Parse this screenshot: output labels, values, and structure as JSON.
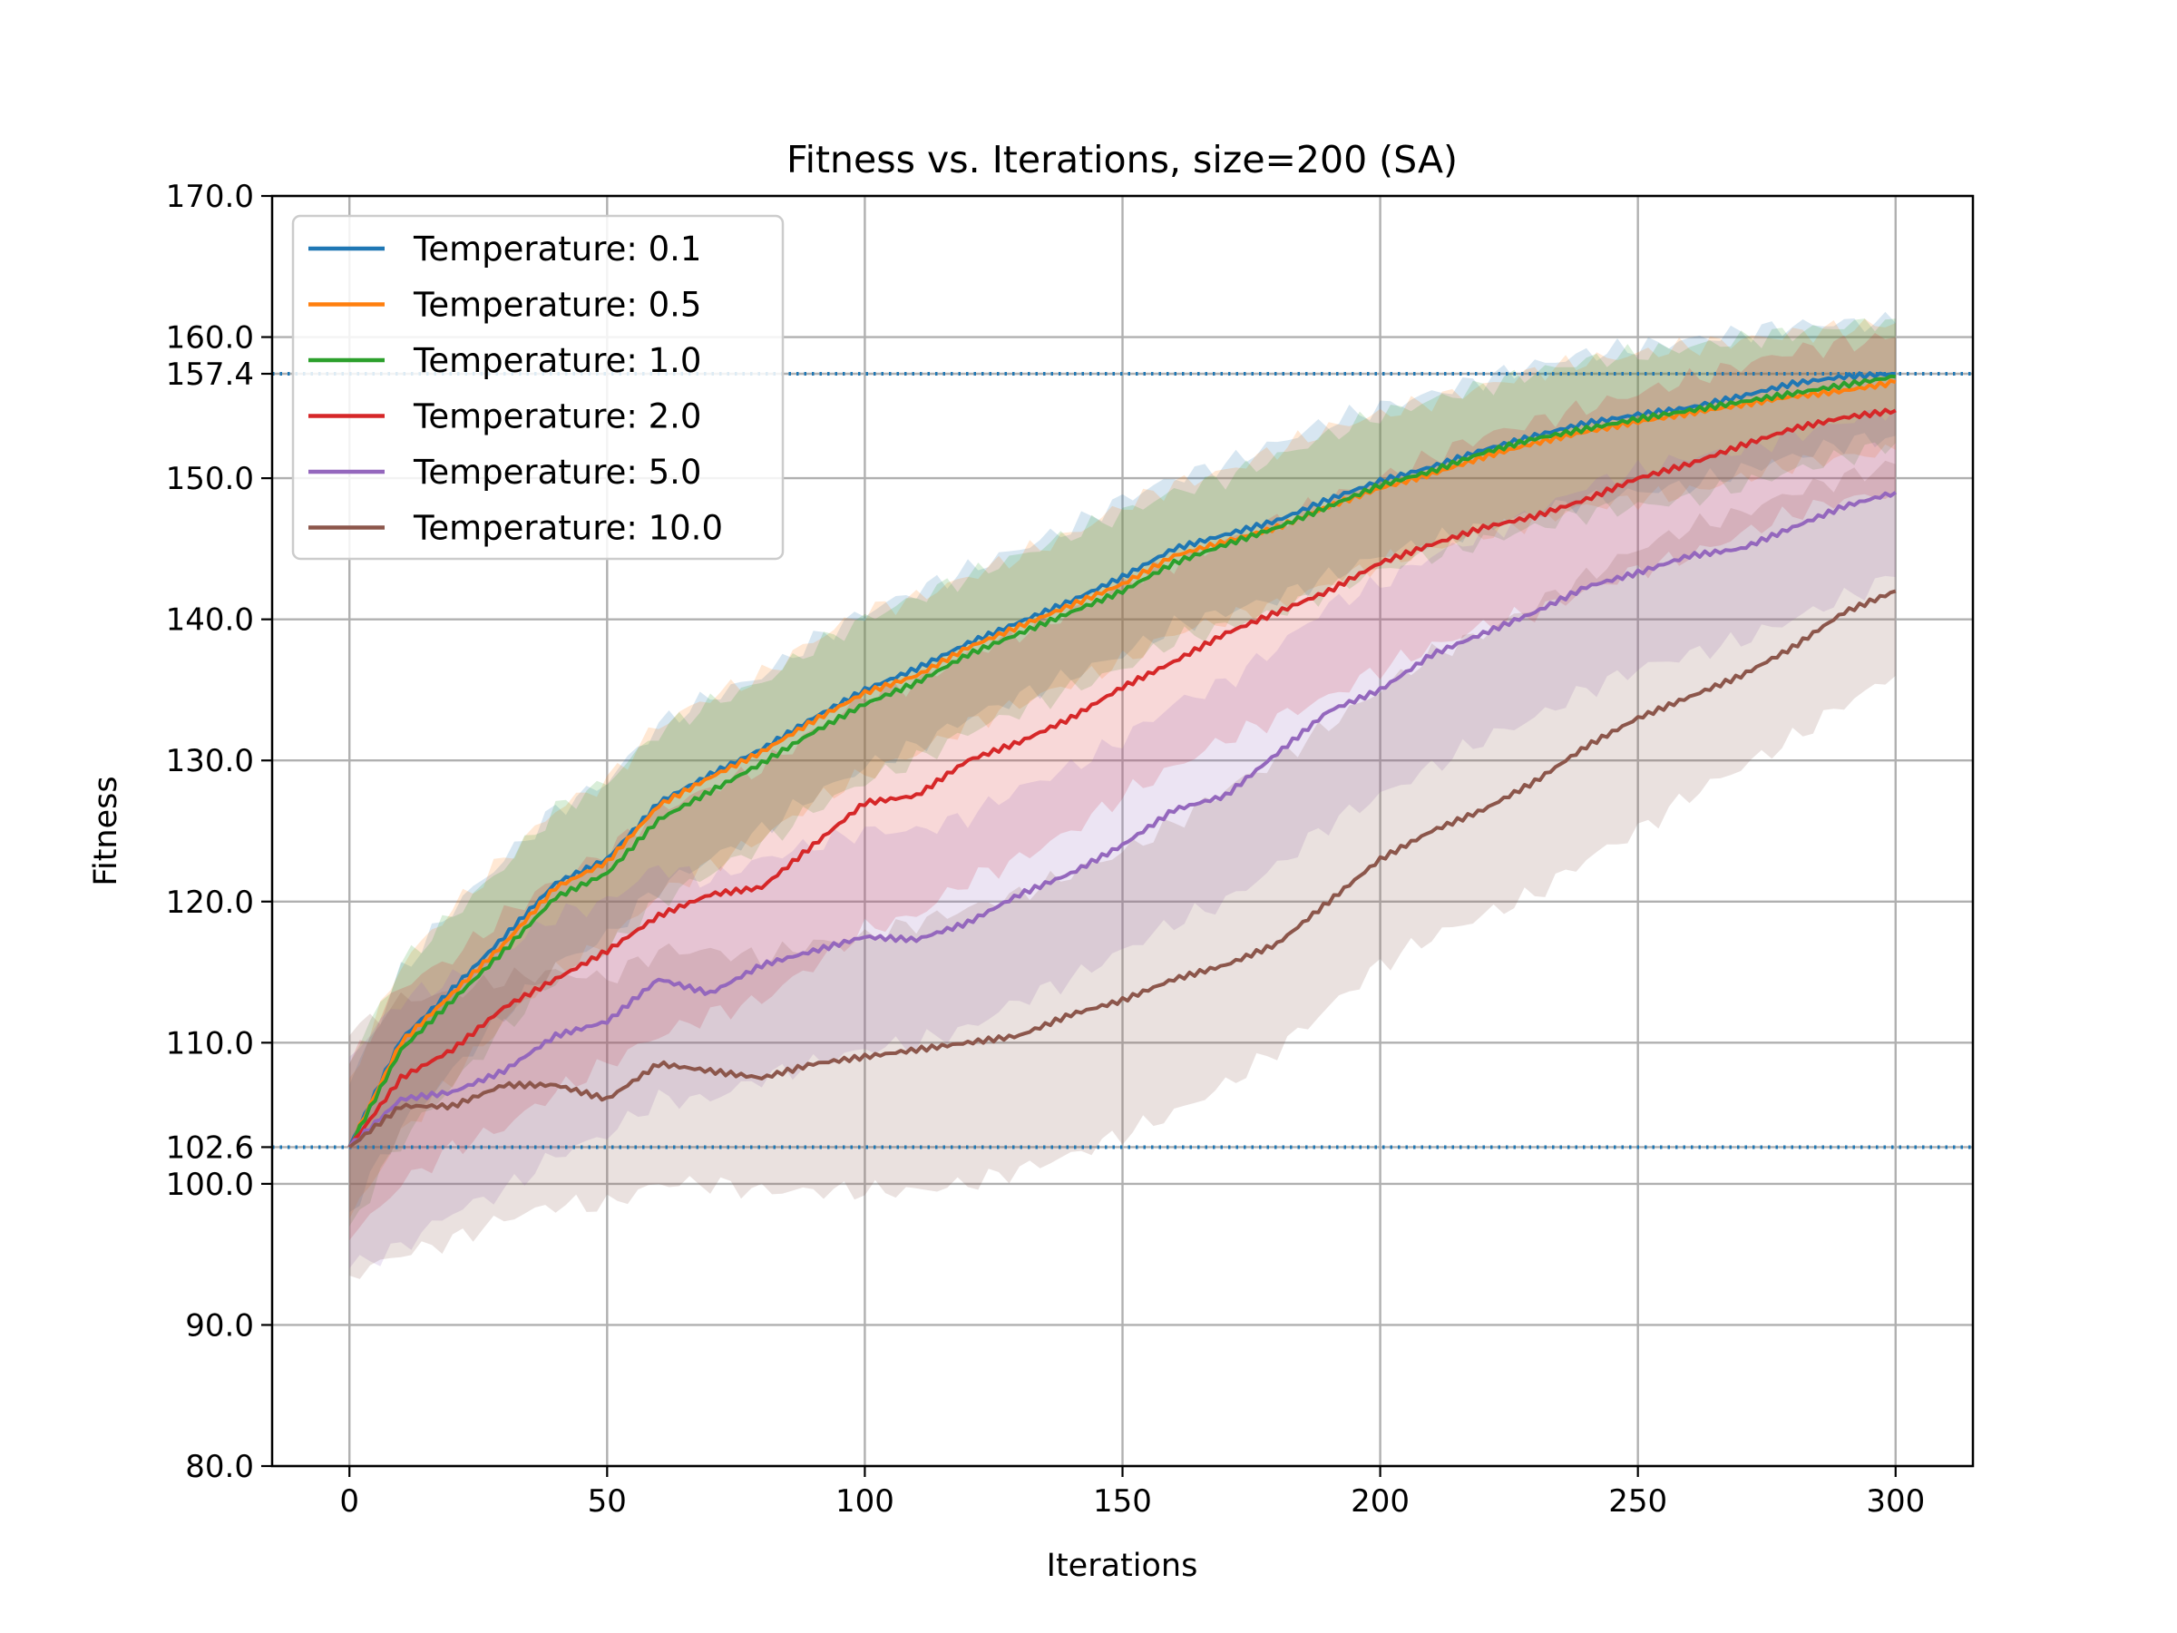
{
  "chart_data": {
    "type": "line",
    "title": "Fitness vs. Iterations, size=200 (SA)",
    "xlabel": "Iterations",
    "ylabel": "Fitness",
    "xlim": [
      -15,
      315
    ],
    "ylim": [
      80,
      170
    ],
    "xticks": [
      "0",
      "50",
      "100",
      "150",
      "200",
      "250",
      "300"
    ],
    "yticks": [
      "80.0",
      "90.0",
      "100.0",
      "102.6",
      "110.0",
      "120.0",
      "130.0",
      "140.0",
      "150.0",
      "157.4",
      "160.0",
      "170.0"
    ],
    "grid": true,
    "legend_position": "top-left",
    "reference_lines": [
      {
        "y": 157.4,
        "label": "157.4",
        "color": "#1f77b4",
        "style": "dotted"
      },
      {
        "y": 102.6,
        "label": "102.6",
        "color": "#1f77b4",
        "style": "dotted"
      }
    ],
    "x": [
      0,
      10,
      20,
      30,
      40,
      50,
      60,
      70,
      80,
      90,
      100,
      110,
      120,
      130,
      140,
      150,
      160,
      170,
      180,
      190,
      200,
      210,
      220,
      230,
      240,
      250,
      260,
      270,
      280,
      290,
      300
    ],
    "series": [
      {
        "name": "Temperature: 0.1",
        "color": "#1f77b4",
        "values": [
          102.6,
          110.2,
          113.8,
          117.5,
          121.3,
          123.0,
          127.0,
          129.0,
          130.8,
          133.0,
          135.0,
          136.5,
          138.3,
          139.8,
          141.3,
          143.0,
          145.0,
          146.0,
          147.0,
          148.5,
          149.8,
          150.8,
          152.0,
          153.0,
          153.9,
          154.5,
          155.0,
          155.8,
          156.7,
          157.2,
          157.4
        ],
        "lower": [
          98.0,
          104.0,
          108.0,
          112.0,
          115.5,
          117.5,
          121.0,
          123.0,
          125.0,
          127.5,
          129.5,
          131.0,
          133.0,
          134.5,
          136.0,
          137.5,
          139.5,
          140.5,
          141.5,
          143.0,
          144.5,
          145.5,
          146.5,
          147.5,
          148.5,
          149.0,
          149.5,
          150.5,
          151.5,
          152.5,
          153.0
        ],
        "upper": [
          107.0,
          115.0,
          119.5,
          123.0,
          126.5,
          128.5,
          132.5,
          134.5,
          136.0,
          138.5,
          140.5,
          142.0,
          143.5,
          145.0,
          146.5,
          148.5,
          150.0,
          151.0,
          152.5,
          154.0,
          155.0,
          156.0,
          157.0,
          158.0,
          158.8,
          159.3,
          159.8,
          160.3,
          160.8,
          161.0,
          161.0
        ]
      },
      {
        "name": "Temperature: 0.5",
        "color": "#ff7f0e",
        "values": [
          102.6,
          110.0,
          113.5,
          117.0,
          121.0,
          122.8,
          126.8,
          128.8,
          130.6,
          132.8,
          134.8,
          136.0,
          138.0,
          139.5,
          141.0,
          142.5,
          144.5,
          145.5,
          146.5,
          148.0,
          149.3,
          150.3,
          151.5,
          152.5,
          153.3,
          154.0,
          154.6,
          155.2,
          155.8,
          156.2,
          156.8
        ],
        "lower": [
          97.5,
          103.5,
          107.5,
          111.5,
          115.0,
          117.0,
          120.5,
          122.5,
          124.5,
          127.0,
          129.0,
          130.5,
          132.5,
          134.0,
          135.5,
          137.0,
          139.0,
          140.0,
          141.0,
          142.5,
          144.0,
          145.0,
          146.0,
          147.0,
          148.0,
          148.5,
          149.0,
          150.0,
          151.0,
          151.5,
          152.0
        ],
        "upper": [
          107.5,
          115.5,
          119.5,
          123.0,
          126.5,
          128.5,
          132.5,
          134.5,
          136.0,
          138.5,
          140.5,
          141.5,
          143.0,
          144.5,
          146.0,
          148.0,
          149.5,
          150.5,
          152.0,
          153.5,
          154.5,
          155.5,
          156.5,
          157.5,
          158.3,
          158.8,
          159.3,
          159.8,
          160.2,
          160.6,
          161.0
        ]
      },
      {
        "name": "Temperature: 1.0",
        "color": "#2ca02c",
        "values": [
          102.6,
          109.5,
          113.0,
          116.5,
          120.3,
          122.0,
          125.8,
          127.8,
          129.8,
          132.0,
          134.0,
          135.5,
          137.5,
          139.0,
          140.5,
          142.0,
          144.0,
          145.3,
          146.5,
          148.0,
          149.5,
          150.5,
          151.8,
          152.8,
          153.5,
          154.2,
          154.8,
          155.4,
          156.0,
          156.6,
          157.2
        ],
        "lower": [
          97.0,
          103.0,
          107.0,
          111.0,
          114.5,
          116.5,
          120.0,
          122.0,
          124.0,
          126.5,
          128.5,
          130.0,
          132.0,
          133.5,
          135.0,
          136.5,
          138.5,
          139.5,
          140.5,
          142.0,
          143.5,
          144.5,
          145.5,
          146.5,
          147.5,
          148.0,
          148.5,
          149.5,
          150.5,
          151.5,
          152.5
        ],
        "upper": [
          108.5,
          115.5,
          119.0,
          122.5,
          126.5,
          128.5,
          132.0,
          134.0,
          135.5,
          138.0,
          140.0,
          141.5,
          143.0,
          144.5,
          146.0,
          147.5,
          149.0,
          150.0,
          151.5,
          153.0,
          154.5,
          155.5,
          156.5,
          157.5,
          158.3,
          158.8,
          159.3,
          159.8,
          160.3,
          160.8,
          161.3
        ]
      },
      {
        "name": "Temperature: 2.0",
        "color": "#d62728",
        "values": [
          102.6,
          107.5,
          109.5,
          112.5,
          114.5,
          116.5,
          119.0,
          120.5,
          121.0,
          124.0,
          127.0,
          127.5,
          130.0,
          131.3,
          133.0,
          135.2,
          137.0,
          139.0,
          140.5,
          142.0,
          144.0,
          145.3,
          146.5,
          147.3,
          148.5,
          150.0,
          151.0,
          152.3,
          153.5,
          154.3,
          154.8
        ],
        "lower": [
          96.0,
          100.0,
          102.5,
          104.0,
          106.5,
          108.5,
          110.5,
          112.0,
          113.0,
          115.5,
          118.0,
          119.0,
          121.5,
          123.0,
          125.0,
          127.5,
          129.5,
          131.5,
          133.0,
          134.5,
          136.5,
          138.0,
          139.5,
          140.5,
          142.0,
          143.5,
          144.5,
          146.0,
          147.5,
          148.5,
          149.0
        ],
        "upper": [
          108.5,
          114.0,
          116.0,
          119.0,
          121.5,
          123.5,
          126.5,
          128.0,
          129.5,
          132.0,
          134.5,
          135.5,
          137.5,
          139.0,
          140.5,
          142.5,
          144.0,
          145.5,
          147.0,
          148.5,
          150.0,
          151.5,
          153.0,
          154.0,
          155.0,
          156.0,
          157.0,
          158.0,
          159.0,
          159.5,
          160.0
        ]
      },
      {
        "name": "Temperature: 5.0",
        "color": "#9467bd",
        "values": [
          102.6,
          106.0,
          106.5,
          108.0,
          110.5,
          111.5,
          114.5,
          113.5,
          115.5,
          116.5,
          117.5,
          117.3,
          118.5,
          120.5,
          122.0,
          124.0,
          126.5,
          127.5,
          130.5,
          133.5,
          135.0,
          137.5,
          139.0,
          140.5,
          142.3,
          143.3,
          144.5,
          145.0,
          146.5,
          148.0,
          149.0
        ],
        "lower": [
          94.0,
          95.5,
          98.0,
          99.5,
          102.0,
          103.5,
          106.0,
          106.0,
          107.5,
          108.5,
          109.5,
          110.0,
          111.0,
          113.0,
          114.5,
          116.5,
          118.5,
          120.0,
          122.5,
          125.5,
          127.5,
          129.5,
          131.5,
          133.0,
          135.0,
          136.5,
          137.5,
          138.5,
          140.0,
          141.5,
          143.0
        ],
        "upper": [
          109.0,
          113.0,
          114.5,
          116.5,
          119.0,
          120.0,
          122.5,
          121.5,
          123.0,
          124.0,
          125.0,
          125.0,
          126.0,
          128.0,
          129.5,
          131.5,
          134.0,
          135.5,
          138.0,
          141.0,
          142.5,
          144.5,
          146.0,
          147.5,
          149.5,
          150.5,
          151.5,
          152.0,
          153.0,
          154.0,
          155.0
        ]
      },
      {
        "name": "Temperature: 10.0",
        "color": "#8c564b",
        "values": [
          102.6,
          105.5,
          105.5,
          107.0,
          107.0,
          106.0,
          108.5,
          108.0,
          107.5,
          108.5,
          109.0,
          109.5,
          110.0,
          110.5,
          112.0,
          113.0,
          114.5,
          115.5,
          117.0,
          120.0,
          123.0,
          125.0,
          126.5,
          128.5,
          131.0,
          133.0,
          134.5,
          136.0,
          138.0,
          140.5,
          142.0
        ],
        "lower": [
          93.5,
          95.0,
          96.0,
          97.5,
          98.5,
          98.5,
          100.0,
          100.0,
          99.5,
          99.5,
          99.5,
          99.5,
          100.0,
          101.0,
          102.0,
          103.5,
          105.0,
          107.0,
          109.5,
          112.5,
          115.5,
          117.5,
          119.0,
          120.5,
          123.0,
          125.0,
          127.5,
          129.5,
          131.5,
          134.0,
          136.0
        ],
        "upper": [
          110.5,
          113.0,
          113.5,
          114.5,
          115.0,
          114.5,
          116.5,
          116.5,
          116.0,
          117.0,
          117.5,
          118.5,
          119.5,
          120.5,
          122.0,
          123.5,
          125.5,
          128.0,
          130.0,
          132.5,
          135.0,
          137.5,
          139.0,
          141.0,
          143.0,
          145.0,
          146.5,
          147.5,
          149.0,
          150.0,
          151.0
        ]
      }
    ]
  }
}
